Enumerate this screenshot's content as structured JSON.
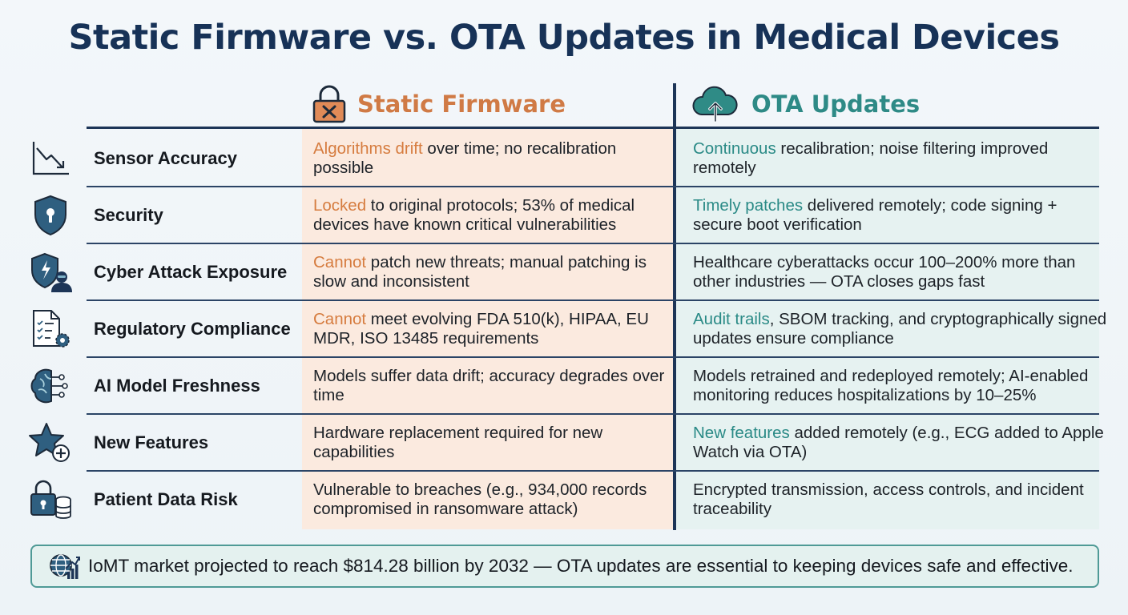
{
  "title": "Static Firmware vs. OTA Updates in Medical Devices",
  "columns": {
    "static": {
      "label": "Static Firmware",
      "icon": "lock-x-icon",
      "color": "#d07a45"
    },
    "ota": {
      "label": "OTA Updates",
      "icon": "cloud-upload-icon",
      "color": "#2e8a86"
    }
  },
  "rows": [
    {
      "label": "Sensor Accuracy",
      "icon": "declining-chart-icon",
      "static_hl": "Algorithms drift",
      "static_rest": " over time; no recalibration possible",
      "ota_hl": "Continuous",
      "ota_rest": " recalibration; noise filtering improved remotely"
    },
    {
      "label": "Security",
      "icon": "shield-keyhole-icon",
      "static_hl": "Locked",
      "static_rest": " to original protocols; 53% of medical devices have known critical vulnerabilities",
      "ota_hl": "Timely patches",
      "ota_rest": " delivered remotely; code signing + secure boot verification"
    },
    {
      "label": "Cyber Attack Exposure",
      "icon": "shield-hacker-icon",
      "static_hl": "Cannot",
      "static_rest": " patch new threats; manual patching is slow and inconsistent",
      "ota_hl": "",
      "ota_rest": "Healthcare cyberattacks occur 100–200% more than other industries — OTA closes gaps fast"
    },
    {
      "label": "Regulatory Compliance",
      "icon": "document-gear-icon",
      "static_hl": "Cannot",
      "static_rest": " meet evolving FDA 510(k), HIPAA, EU MDR, ISO 13485 requirements",
      "ota_hl": "Audit trails",
      "ota_rest": ", SBOM tracking, and cryptographically signed updates ensure compliance"
    },
    {
      "label": "AI Model Freshness",
      "icon": "ai-brain-icon",
      "static_hl": "",
      "static_rest": "Models suffer data drift; accuracy degrades over time",
      "ota_hl": "",
      "ota_rest": "Models retrained and redeployed remotely; AI-enabled monitoring reduces hospitalizations by 10–25%"
    },
    {
      "label": "New Features",
      "icon": "star-plus-icon",
      "static_hl": "",
      "static_rest": "Hardware replacement required for new capabilities",
      "ota_hl": "New features",
      "ota_rest": " added remotely (e.g., ECG added to Apple Watch via OTA)"
    },
    {
      "label": "Patient Data Risk",
      "icon": "lock-database-icon",
      "static_hl": "",
      "static_rest": "Vulnerable to breaches (e.g., 934,000 records compromised in ransomware attack)",
      "ota_hl": "",
      "ota_rest": "Encrypted transmission, access controls, and incident traceability"
    }
  ],
  "footer": {
    "icon": "globe-growth-icon",
    "text": "IoMT market projected to reach $814.28 billion by 2032 — OTA updates are essential to keeping devices safe and effective."
  },
  "colors": {
    "navy": "#173257",
    "orange": "#d67c3f",
    "teal": "#2a8a86",
    "static_bg": "#fbeadf",
    "ota_bg": "#e6f2f1"
  }
}
